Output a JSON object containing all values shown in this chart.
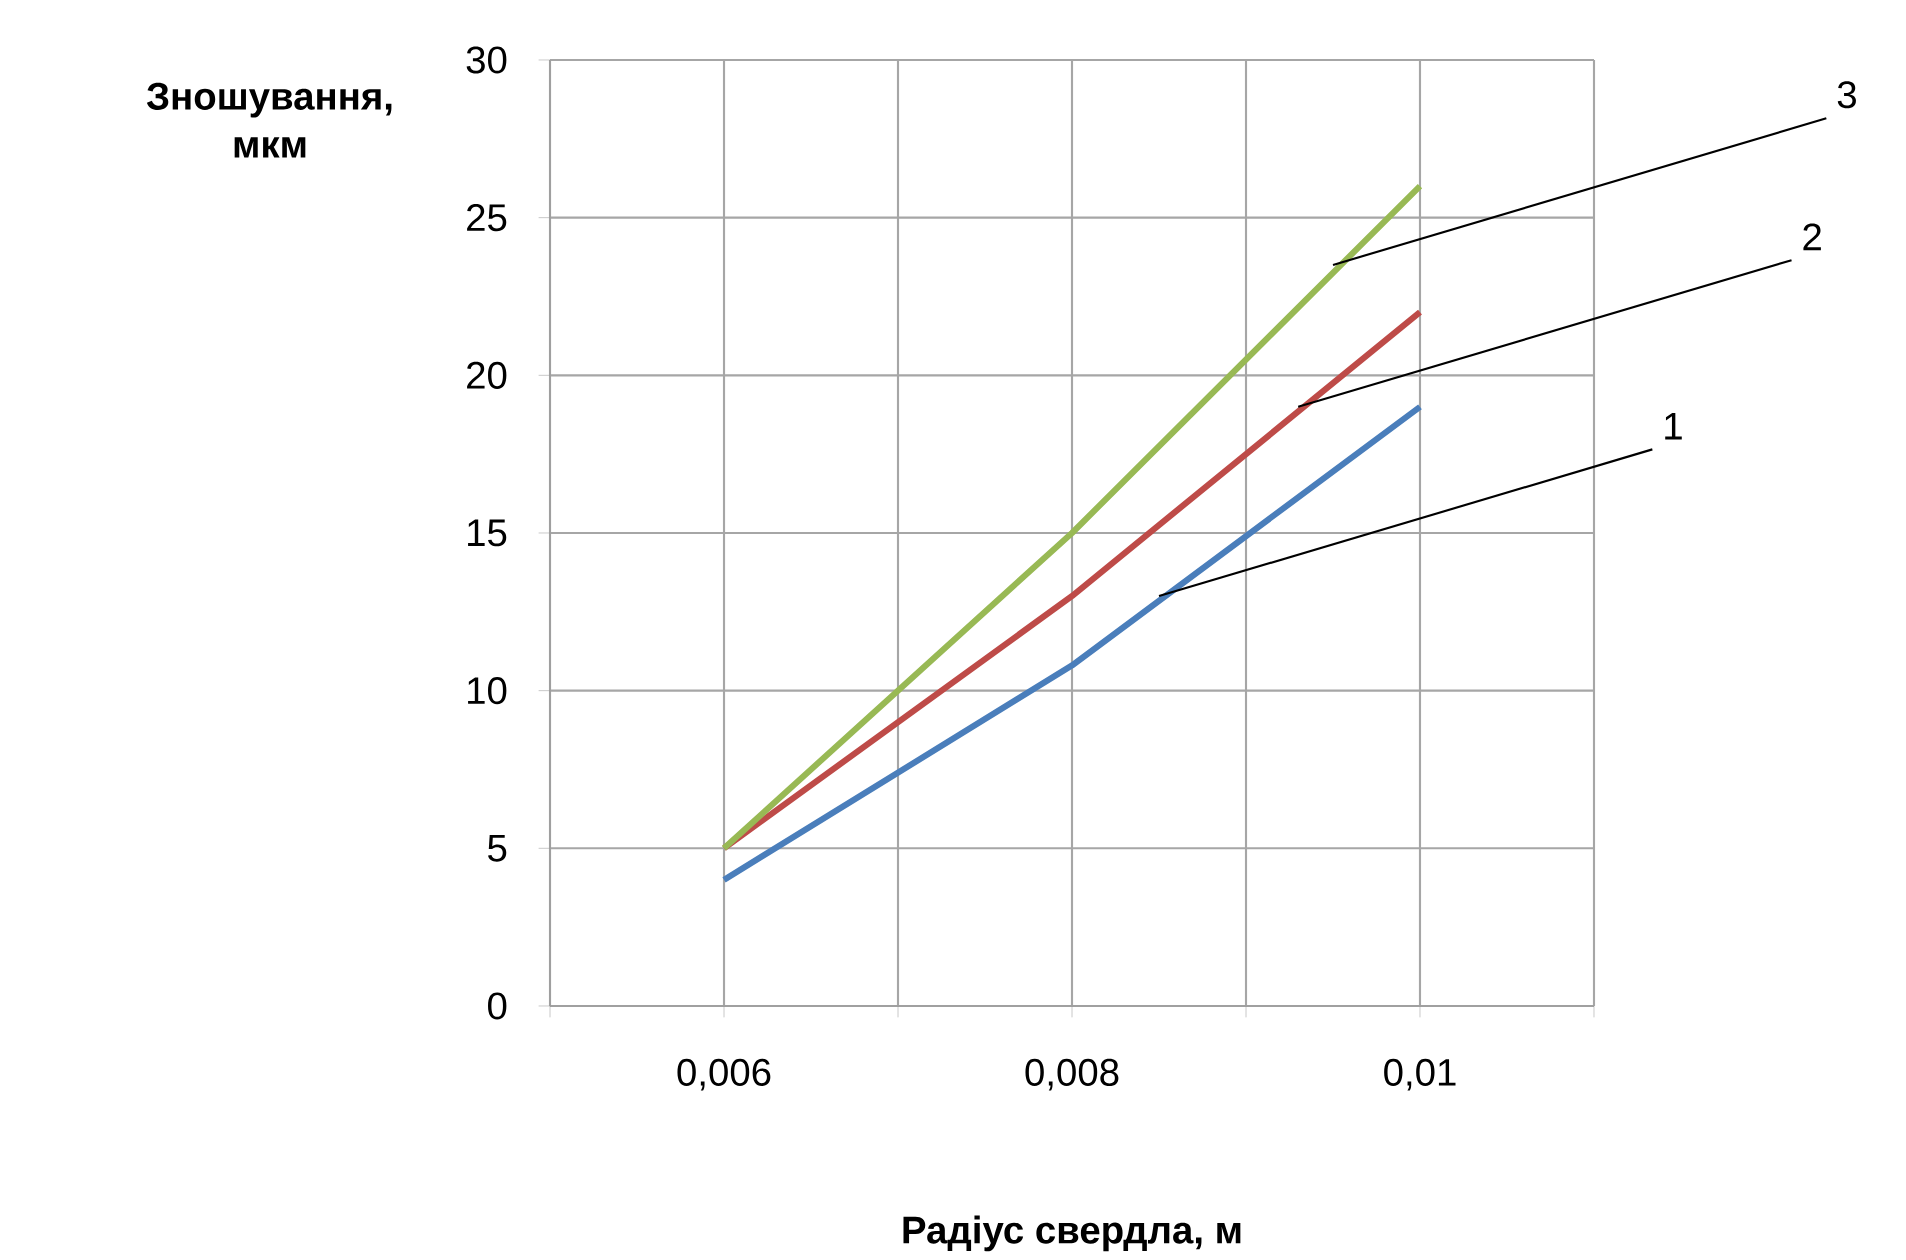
{
  "chart_data": {
    "type": "line",
    "xlabel": "Радіус  свердла, м",
    "ylabel": "Зношування, мкм",
    "x": [
      0.006,
      0.008,
      0.01
    ],
    "series": [
      {
        "color": "#4a7ebb",
        "values": [
          4,
          10.8,
          19
        ]
      },
      {
        "color": "#be4b48",
        "values": [
          5,
          13,
          22
        ]
      },
      {
        "color": "#98b954",
        "values": [
          5,
          15,
          26
        ]
      }
    ],
    "xlim": [
      0.005,
      0.011
    ],
    "xticks": [
      {
        "value": 0.005,
        "label": null
      },
      {
        "value": 0.006,
        "label": "0,006"
      },
      {
        "value": 0.007,
        "label": null
      },
      {
        "value": 0.008,
        "label": "0,008"
      },
      {
        "value": 0.009,
        "label": null
      },
      {
        "value": 0.01,
        "label": "0,01"
      },
      {
        "value": 0.011,
        "label": null
      }
    ],
    "ylim": [
      0,
      30
    ],
    "yticks": [
      0,
      5,
      10,
      15,
      20,
      25,
      30
    ],
    "grid": true,
    "marker": "none",
    "line_style": "solid",
    "annotations": [
      {
        "text": "1",
        "x": 0.0085,
        "y": 13
      },
      {
        "text": "2",
        "x": 0.0093,
        "y": 19
      },
      {
        "text": "3",
        "x": 0.0095,
        "y": 23.5
      }
    ]
  }
}
